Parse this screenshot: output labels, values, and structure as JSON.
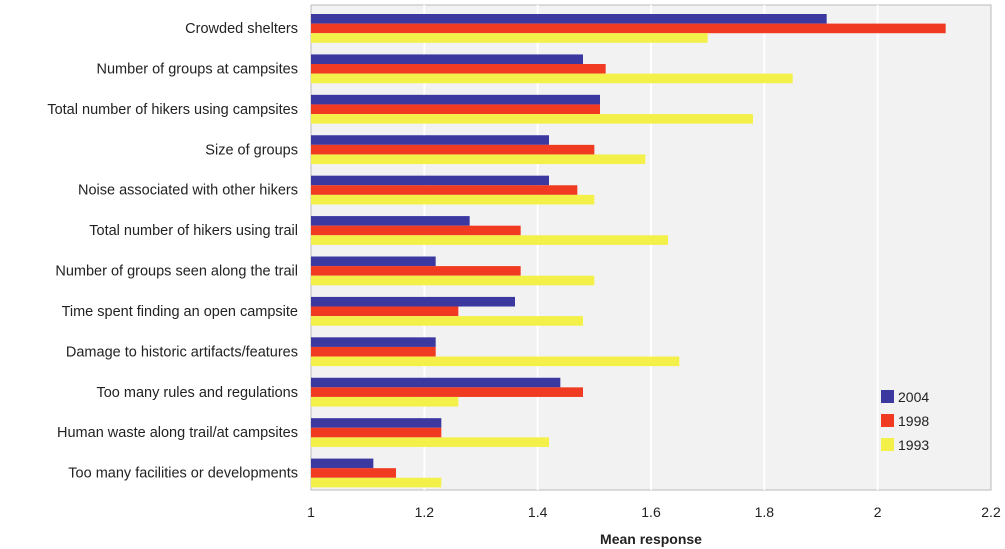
{
  "chart_data": {
    "type": "bar",
    "orientation": "horizontal",
    "title": "",
    "xlabel": "Mean response",
    "ylabel": "",
    "xlim": [
      1,
      2.2
    ],
    "xticks": [
      1,
      1.2,
      1.4,
      1.6,
      1.8,
      2,
      2.2
    ],
    "xtick_labels": [
      "1",
      "1.2",
      "1.4",
      "1.6",
      "1.8",
      "2",
      "2.2"
    ],
    "grid": "vertical",
    "legend_position": "bottom-right",
    "categories": [
      "Crowded shelters",
      "Number of groups at campsites",
      "Total number of hikers using campsites",
      "Size of groups",
      "Noise associated with other hikers",
      "Total number of hikers using trail",
      "Number of groups seen along the trail",
      "Time spent finding an open campsite",
      "Damage to historic artifacts/features",
      "Too many rules and regulations",
      "Human waste along trail/at campsites",
      "Too many facilities or developments"
    ],
    "series": [
      {
        "name": "2004",
        "color": "#3b38a0",
        "values": [
          1.91,
          1.48,
          1.51,
          1.42,
          1.42,
          1.28,
          1.22,
          1.36,
          1.22,
          1.44,
          1.23,
          1.11
        ]
      },
      {
        "name": "1998",
        "color": "#f03a22",
        "values": [
          2.12,
          1.52,
          1.51,
          1.5,
          1.47,
          1.37,
          1.37,
          1.26,
          1.22,
          1.48,
          1.23,
          1.15
        ]
      },
      {
        "name": "1993",
        "color": "#f4f04a",
        "values": [
          1.7,
          1.85,
          1.78,
          1.59,
          1.5,
          1.63,
          1.5,
          1.48,
          1.65,
          1.26,
          1.42,
          1.23
        ]
      }
    ]
  }
}
